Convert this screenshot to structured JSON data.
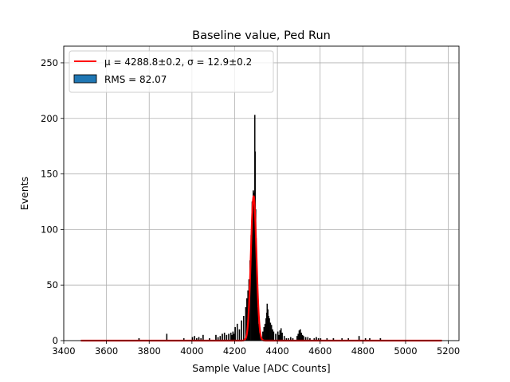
{
  "chart_data": {
    "type": "histogram",
    "title": "Baseline value, Ped Run",
    "xlabel": "Sample Value [ADC Counts]",
    "ylabel": "Events",
    "xlim": [
      3400,
      5250
    ],
    "ylim": [
      0,
      265
    ],
    "xticks": [
      3400,
      3600,
      3800,
      4000,
      4200,
      4400,
      4600,
      4800,
      5000,
      5200
    ],
    "yticks": [
      0,
      50,
      100,
      150,
      200,
      250
    ],
    "grid": true,
    "legend_position": "top-left",
    "legend": {
      "fit_label": "μ = 4288.8±0.2, σ = 12.9±0.2",
      "hist_label": "RMS = 82.07"
    },
    "fit": {
      "mu": 4288.8,
      "sigma": 12.9,
      "amplitude": 130,
      "x_range": [
        3480,
        5170
      ]
    },
    "histogram": {
      "bins": [
        [
          3750,
          2
        ],
        [
          3880,
          6
        ],
        [
          3960,
          2
        ],
        [
          4000,
          3
        ],
        [
          4010,
          4
        ],
        [
          4020,
          2
        ],
        [
          4030,
          3
        ],
        [
          4040,
          2
        ],
        [
          4050,
          5
        ],
        [
          4080,
          2
        ],
        [
          4110,
          5
        ],
        [
          4120,
          3
        ],
        [
          4130,
          4
        ],
        [
          4140,
          6
        ],
        [
          4150,
          7
        ],
        [
          4160,
          5
        ],
        [
          4170,
          6
        ],
        [
          4180,
          7
        ],
        [
          4185,
          5
        ],
        [
          4190,
          8
        ],
        [
          4195,
          6
        ],
        [
          4200,
          12
        ],
        [
          4210,
          15
        ],
        [
          4220,
          10
        ],
        [
          4230,
          18
        ],
        [
          4240,
          22
        ],
        [
          4250,
          30
        ],
        [
          4255,
          38
        ],
        [
          4260,
          45
        ],
        [
          4265,
          55
        ],
        [
          4270,
          72
        ],
        [
          4275,
          95
        ],
        [
          4280,
          125
        ],
        [
          4285,
          135
        ],
        [
          4288,
          128
        ],
        [
          4290,
          133
        ],
        [
          4292,
          203
        ],
        [
          4294,
          170
        ],
        [
          4296,
          118
        ],
        [
          4298,
          92
        ],
        [
          4302,
          55
        ],
        [
          4306,
          30
        ],
        [
          4310,
          15
        ],
        [
          4314,
          7
        ],
        [
          4320,
          4
        ],
        [
          4330,
          8
        ],
        [
          4335,
          12
        ],
        [
          4340,
          15
        ],
        [
          4345,
          20
        ],
        [
          4348,
          25
        ],
        [
          4350,
          33
        ],
        [
          4353,
          28
        ],
        [
          4356,
          22
        ],
        [
          4360,
          20
        ],
        [
          4365,
          16
        ],
        [
          4370,
          14
        ],
        [
          4375,
          10
        ],
        [
          4380,
          8
        ],
        [
          4390,
          6
        ],
        [
          4400,
          8
        ],
        [
          4405,
          5
        ],
        [
          4410,
          9
        ],
        [
          4415,
          11
        ],
        [
          4420,
          7
        ],
        [
          4430,
          4
        ],
        [
          4440,
          2
        ],
        [
          4450,
          2
        ],
        [
          4460,
          3
        ],
        [
          4470,
          2
        ],
        [
          4490,
          4
        ],
        [
          4495,
          6
        ],
        [
          4500,
          9
        ],
        [
          4505,
          10
        ],
        [
          4510,
          7
        ],
        [
          4515,
          5
        ],
        [
          4520,
          4
        ],
        [
          4530,
          3
        ],
        [
          4540,
          3
        ],
        [
          4550,
          2
        ],
        [
          4570,
          2
        ],
        [
          4580,
          3
        ],
        [
          4590,
          2
        ],
        [
          4600,
          2
        ],
        [
          4630,
          2
        ],
        [
          4660,
          2
        ],
        [
          4700,
          2
        ],
        [
          4730,
          2
        ],
        [
          4780,
          4
        ],
        [
          4810,
          2
        ],
        [
          4830,
          2
        ],
        [
          4880,
          2
        ]
      ],
      "bin_width": 4.5
    },
    "colors": {
      "fit": "#ff0000",
      "bars": "#000000",
      "legend_patch": "#1f77b4",
      "grid": "#b0b0b0"
    }
  }
}
